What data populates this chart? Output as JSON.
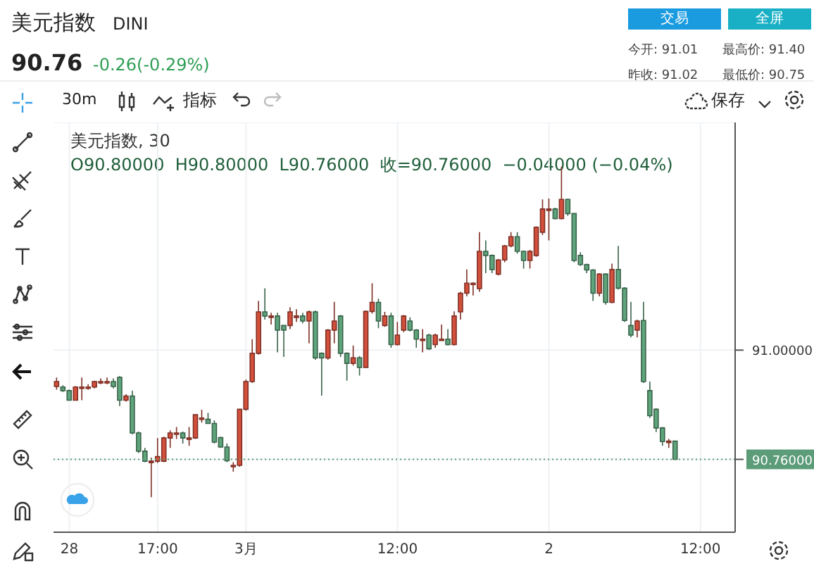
{
  "chart_data": {
    "type": "candlestick",
    "title": "美元指数",
    "subtitle": "DINI",
    "annotations": [
      "90.76",
      "-0.26(-0.29%)",
      "交易",
      "全屏",
      "今开: 91.01",
      "最高价: 91.40",
      "昨收: 91.02",
      "最低价: 90.75",
      "30m",
      "指标",
      "保存",
      "美元指数, 30",
      "O90.80000  H90.80000  L90.76000  收=90.76000  −0.04000 (−0.04%)"
    ],
    "categories": [
      null,
      null,
      "28",
      null,
      null,
      null,
      null,
      null,
      null,
      null,
      null,
      null,
      null,
      null,
      null,
      null,
      "17:00",
      null,
      null,
      null,
      null,
      null,
      null,
      null,
      null,
      null,
      null,
      null,
      null,
      null,
      "3月",
      null,
      null,
      null,
      null,
      null,
      null,
      null,
      null,
      null,
      null,
      null,
      null,
      null,
      null,
      null,
      null,
      null,
      null,
      null,
      null,
      null,
      null,
      null,
      "12:00",
      null,
      null,
      null,
      null,
      null,
      null,
      null,
      null,
      null,
      null,
      null,
      null,
      null,
      null,
      null,
      null,
      null,
      null,
      null,
      null,
      null,
      null,
      null,
      "2",
      null,
      null,
      null,
      null,
      null,
      null,
      null,
      null,
      null,
      null,
      null,
      null,
      null,
      null,
      null,
      null,
      null,
      null,
      null,
      null,
      null,
      null,
      null,
      "12:00",
      null,
      null,
      null,
      null,
      null
    ],
    "ohlc": [
      [
        90.92,
        90.94,
        90.913,
        90.931
      ],
      [
        90.919,
        90.923,
        90.908,
        90.911
      ],
      [
        90.911,
        90.913,
        90.889,
        90.89
      ],
      [
        90.89,
        90.921,
        90.889,
        90.919
      ],
      [
        90.919,
        90.94,
        90.89,
        90.919
      ],
      [
        90.919,
        90.925,
        90.913,
        90.919
      ],
      [
        90.919,
        90.933,
        90.916,
        90.931
      ],
      [
        90.931,
        90.938,
        90.925,
        90.931
      ],
      [
        90.931,
        90.94,
        90.925,
        90.931
      ],
      [
        90.931,
        90.938,
        90.916,
        90.92
      ],
      [
        90.94,
        90.943,
        90.877,
        90.89
      ],
      [
        90.89,
        90.903,
        90.887,
        90.899
      ],
      [
        90.899,
        90.911,
        90.815,
        90.818
      ],
      [
        90.818,
        90.821,
        90.774,
        90.778
      ],
      [
        90.778,
        90.785,
        90.754,
        90.756
      ],
      [
        90.756,
        90.764,
        90.677,
        90.756
      ],
      [
        90.756,
        90.807,
        90.752,
        90.766
      ],
      [
        90.756,
        90.81,
        90.754,
        90.807
      ],
      [
        90.807,
        90.824,
        90.785,
        90.818
      ],
      [
        90.818,
        90.831,
        90.805,
        90.818
      ],
      [
        90.818,
        90.821,
        90.795,
        90.807
      ],
      [
        90.807,
        90.831,
        90.79,
        90.807
      ],
      [
        90.807,
        90.859,
        90.805,
        90.858
      ],
      [
        90.848,
        90.869,
        90.841,
        90.851
      ],
      [
        90.848,
        90.862,
        90.838,
        90.839
      ],
      [
        90.839,
        90.846,
        90.795,
        90.798
      ],
      [
        90.808,
        90.81,
        90.785,
        90.787
      ],
      [
        90.787,
        90.795,
        90.754,
        90.757
      ],
      [
        90.747,
        90.754,
        90.733,
        90.747
      ],
      [
        90.747,
        90.87,
        90.744,
        90.87
      ],
      [
        90.87,
        90.935,
        90.867,
        90.931
      ],
      [
        90.931,
        91.024,
        90.928,
        90.993
      ],
      [
        90.993,
        91.108,
        90.99,
        91.084
      ],
      [
        91.084,
        91.136,
        91.067,
        91.075
      ],
      [
        91.075,
        91.082,
        91.056,
        91.075
      ],
      [
        91.075,
        91.082,
        90.995,
        91.044
      ],
      [
        91.054,
        91.054,
        90.985,
        91.044
      ],
      [
        91.054,
        91.094,
        91.046,
        91.084
      ],
      [
        91.075,
        91.09,
        91.062,
        91.075
      ],
      [
        91.075,
        91.082,
        91.059,
        91.064
      ],
      [
        91.064,
        91.087,
        91.015,
        91.084
      ],
      [
        91.084,
        91.087,
        90.979,
        90.983
      ],
      [
        90.993,
        90.995,
        90.9,
        90.983
      ],
      [
        90.983,
        91.046,
        90.979,
        91.044
      ],
      [
        91.044,
        91.106,
        91.015,
        91.064
      ],
      [
        91.075,
        91.077,
        90.985,
        90.993
      ],
      [
        90.993,
        90.995,
        90.933,
        90.971
      ],
      [
        90.971,
        91.01,
        90.966,
        90.983
      ],
      [
        90.983,
        90.987,
        90.944,
        90.962
      ],
      [
        90.962,
        91.087,
        90.961,
        91.085
      ],
      [
        91.085,
        91.147,
        91.08,
        91.105
      ],
      [
        91.105,
        91.113,
        91.048,
        91.064
      ],
      [
        91.054,
        91.084,
        91.051,
        91.075
      ],
      [
        91.075,
        91.082,
        91.005,
        91.012
      ],
      [
        91.012,
        91.062,
        91.01,
        91.033
      ],
      [
        91.044,
        91.077,
        91.039,
        91.075
      ],
      [
        91.064,
        91.072,
        91.041,
        91.044
      ],
      [
        91.044,
        91.046,
        91.005,
        91.024
      ],
      [
        91.024,
        91.046,
        90.995,
        91.024
      ],
      [
        91.033,
        91.036,
        91.0,
        91.003
      ],
      [
        91.012,
        91.036,
        91.005,
        91.033
      ],
      [
        91.024,
        91.056,
        91.02,
        91.024
      ],
      [
        91.024,
        91.046,
        91.01,
        91.012
      ],
      [
        91.012,
        91.085,
        91.01,
        91.075
      ],
      [
        91.084,
        91.128,
        91.067,
        91.125
      ],
      [
        91.125,
        91.177,
        91.118,
        91.147
      ],
      [
        91.147,
        91.149,
        91.12,
        91.147
      ],
      [
        91.135,
        91.259,
        91.128,
        91.217
      ],
      [
        91.217,
        91.241,
        91.169,
        91.208
      ],
      [
        91.208,
        91.21,
        91.169,
        91.177
      ],
      [
        91.167,
        91.2,
        91.164,
        91.198
      ],
      [
        91.198,
        91.231,
        91.193,
        91.229
      ],
      [
        91.229,
        91.259,
        91.226,
        91.249
      ],
      [
        91.249,
        91.259,
        91.212,
        91.217
      ],
      [
        91.217,
        91.219,
        91.179,
        91.197
      ],
      [
        91.197,
        91.22,
        91.179,
        91.217
      ],
      [
        91.208,
        91.272,
        91.205,
        91.27
      ],
      [
        91.259,
        91.331,
        91.253,
        91.31
      ],
      [
        91.31,
        91.333,
        91.241,
        91.31
      ],
      [
        91.31,
        91.313,
        91.287,
        91.289
      ],
      [
        91.289,
        91.403,
        91.287,
        91.331
      ],
      [
        91.331,
        91.333,
        91.295,
        91.3
      ],
      [
        91.3,
        91.3,
        91.193,
        91.197
      ],
      [
        91.208,
        91.215,
        91.185,
        91.188
      ],
      [
        91.188,
        91.19,
        91.169,
        91.176
      ],
      [
        91.176,
        91.178,
        91.108,
        91.125
      ],
      [
        91.125,
        91.169,
        91.118,
        91.167
      ],
      [
        91.167,
        91.169,
        91.1,
        91.105
      ],
      [
        91.105,
        91.19,
        91.103,
        91.177
      ],
      [
        91.177,
        91.229,
        91.133,
        91.136
      ],
      [
        91.136,
        91.138,
        91.062,
        91.065
      ],
      [
        91.054,
        91.106,
        91.028,
        91.033
      ],
      [
        91.044,
        91.067,
        91.028,
        91.064
      ],
      [
        91.065,
        91.106,
        90.928,
        90.931
      ],
      [
        90.911,
        90.931,
        90.851,
        90.856
      ],
      [
        90.87,
        90.872,
        90.82,
        90.829
      ],
      [
        90.829,
        90.831,
        90.79,
        90.799
      ],
      [
        90.799,
        90.805,
        90.785,
        90.8
      ],
      [
        90.8,
        90.8,
        90.76,
        90.76
      ],
      null,
      null,
      null,
      null,
      null,
      null,
      null,
      null,
      null
    ],
    "colors": [
      "#d4503c",
      "#5fa57c",
      "#5fa57c",
      "#d4503c",
      "#d4503c",
      "#d4503c",
      "#d4503c",
      "#d4503c",
      "#d4503c",
      "#5fa57c",
      "#5fa57c",
      "#d4503c",
      "#5fa57c",
      "#5fa57c",
      "#5fa57c",
      "#d4503c",
      "#d4503c",
      "#d4503c",
      "#d4503c",
      "#d4503c",
      "#5fa57c",
      "#d4503c",
      "#d4503c",
      "#d4503c",
      "#5fa57c",
      "#5fa57c",
      "#5fa57c",
      "#5fa57c",
      "#d4503c",
      "#d4503c",
      "#d4503c",
      "#d4503c",
      "#d4503c",
      "#5fa57c",
      "#d4503c",
      "#5fa57c",
      "#5fa57c",
      "#d4503c",
      "#d4503c",
      "#5fa57c",
      "#d4503c",
      "#5fa57c",
      "#5fa57c",
      "#d4503c",
      "#d4503c",
      "#5fa57c",
      "#5fa57c",
      "#d4503c",
      "#5fa57c",
      "#d4503c",
      "#d4503c",
      "#5fa57c",
      "#d4503c",
      "#5fa57c",
      "#d4503c",
      "#d4503c",
      "#5fa57c",
      "#5fa57c",
      "#d4503c",
      "#5fa57c",
      "#d4503c",
      "#d4503c",
      "#5fa57c",
      "#d4503c",
      "#d4503c",
      "#d4503c",
      "#d4503c",
      "#d4503c",
      "#5fa57c",
      "#5fa57c",
      "#d4503c",
      "#d4503c",
      "#d4503c",
      "#5fa57c",
      "#5fa57c",
      "#d4503c",
      "#d4503c",
      "#d4503c",
      "#d4503c",
      "#5fa57c",
      "#d4503c",
      "#5fa57c",
      "#5fa57c",
      "#5fa57c",
      "#5fa57c",
      "#5fa57c",
      "#d4503c",
      "#5fa57c",
      "#d4503c",
      "#5fa57c",
      "#5fa57c",
      "#5fa57c",
      "#d4503c",
      "#5fa57c",
      "#5fa57c",
      "#5fa57c",
      "#5fa57c",
      "#d4503c",
      "#5fa57c",
      null,
      null,
      null,
      null,
      null,
      null,
      null,
      null,
      null
    ],
    "ylim": [
      90.6,
      91.5
    ],
    "yticks": [
      {
        "value": 90.76,
        "label": "90.76000"
      },
      {
        "value": 91,
        "label": "91.00000"
      }
    ],
    "ref_lines": [
      {
        "axis": "y",
        "value": 90.76,
        "color": "#5c9c78",
        "line_style": "dotted"
      }
    ],
    "grid": true
  }
}
